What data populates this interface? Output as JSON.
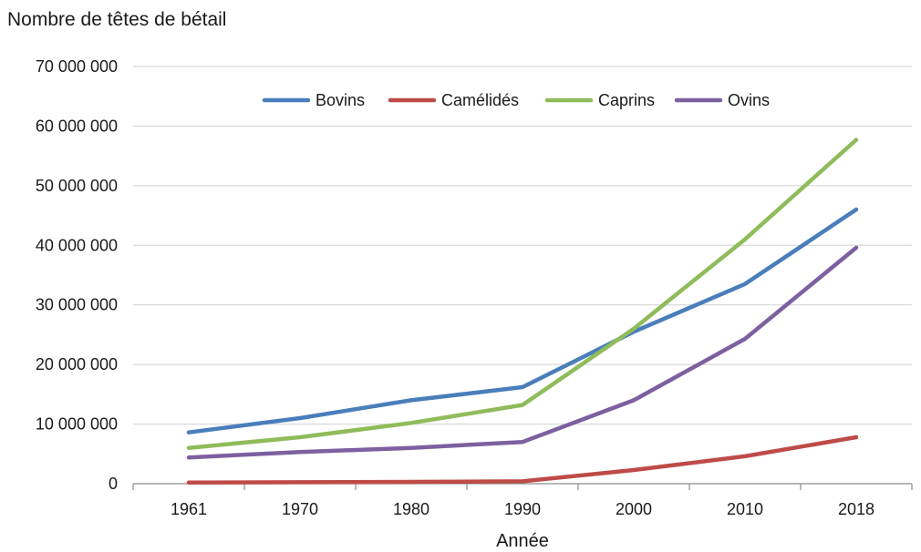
{
  "chart_data": {
    "type": "line",
    "title": "Nombre de têtes de bétail",
    "xlabel": "Année",
    "ylabel": "",
    "categories": [
      "1961",
      "1970",
      "1980",
      "1990",
      "2000",
      "2010",
      "2018"
    ],
    "ylim": [
      0,
      70000000
    ],
    "yticks": [
      0,
      10000000,
      20000000,
      30000000,
      40000000,
      50000000,
      60000000,
      70000000
    ],
    "ytick_labels": [
      "0",
      "10 000 000",
      "20 000 000",
      "30 000 000",
      "40 000 000",
      "50 000 000",
      "60 000 000",
      "70 000 000"
    ],
    "grid": "horizontal",
    "legend_position": "top",
    "series": [
      {
        "name": "Bovins",
        "color": "#4a7ebb",
        "values": [
          8600000,
          11000000,
          14000000,
          16200000,
          25500000,
          33500000,
          46000000
        ]
      },
      {
        "name": "Camélidés",
        "color": "#be4b48",
        "values": [
          200000,
          250000,
          300000,
          400000,
          2300000,
          4600000,
          7800000
        ]
      },
      {
        "name": "Caprins",
        "color": "#8fbc5a",
        "values": [
          6000000,
          7800000,
          10200000,
          13200000,
          26000000,
          41000000,
          57700000
        ]
      },
      {
        "name": "Ovins",
        "color": "#7d60a0",
        "values": [
          4400000,
          5300000,
          6000000,
          7000000,
          14000000,
          24300000,
          39600000
        ]
      }
    ]
  }
}
